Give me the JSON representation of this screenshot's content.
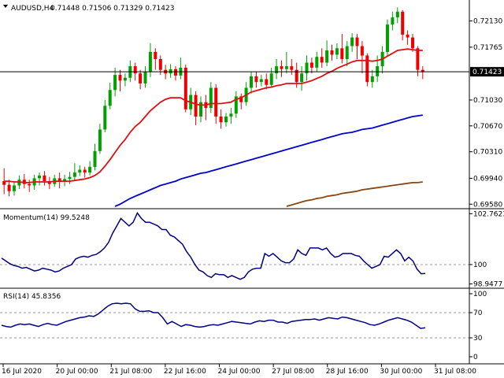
{
  "chart_data": [
    {
      "type": "candlestick",
      "title": "AUDUSD,H4",
      "ohlc_label": "0.71448 0.71506 0.71329 0.71423",
      "last_price_label": "0.71423",
      "last_price": 0.71423,
      "ylim": [
        0.6955,
        0.724
      ],
      "yticks": [
        "0.72130",
        "0.71765",
        "0.71030",
        "0.70670",
        "0.70310",
        "0.69940",
        "0.69580"
      ],
      "xticks": [
        "16 Jul 2020",
        "20 Jul 00:00",
        "21 Jul 08:00",
        "22 Jul 16:00",
        "24 Jul 00:00",
        "27 Jul 08:00",
        "28 Jul 16:00",
        "30 Jul 00:00",
        "31 Jul 08:00"
      ],
      "colors": {
        "up": "#00a000",
        "down": "#ee0000",
        "ma_fast": "#dd1111",
        "ma_mid": "#0000cc",
        "ma_slow": "#8b4513"
      },
      "candles": [
        [
          0.699,
          0.6985,
          0.7008,
          0.6972
        ],
        [
          0.6985,
          0.6976,
          0.6992,
          0.6969
        ],
        [
          0.6976,
          0.6984,
          0.699,
          0.697
        ],
        [
          0.6984,
          0.6992,
          0.6998,
          0.6979
        ],
        [
          0.6992,
          0.6986,
          0.7,
          0.698
        ],
        [
          0.6986,
          0.6984,
          0.6992,
          0.6975
        ],
        [
          0.6984,
          0.6994,
          0.6999,
          0.6978
        ],
        [
          0.6994,
          0.6998,
          0.7002,
          0.6984
        ],
        [
          0.6998,
          0.699,
          0.7004,
          0.6984
        ],
        [
          0.699,
          0.6986,
          0.6996,
          0.6979
        ],
        [
          0.6986,
          0.6994,
          0.6999,
          0.6982
        ],
        [
          0.6994,
          0.699,
          0.7002,
          0.698
        ],
        [
          0.699,
          0.6993,
          0.6999,
          0.6983
        ],
        [
          0.6993,
          0.6996,
          0.7003,
          0.6986
        ],
        [
          0.6996,
          0.7002,
          0.7015,
          0.699
        ],
        [
          0.7002,
          0.7006,
          0.7012,
          0.6997
        ],
        [
          0.7006,
          0.7002,
          0.701,
          0.6995
        ],
        [
          0.7002,
          0.701,
          0.7018,
          0.6998
        ],
        [
          0.701,
          0.7032,
          0.7042,
          0.7005
        ],
        [
          0.7032,
          0.7062,
          0.707,
          0.7028
        ],
        [
          0.7062,
          0.7095,
          0.7103,
          0.7058
        ],
        [
          0.7095,
          0.7117,
          0.7127,
          0.709
        ],
        [
          0.7117,
          0.7138,
          0.7148,
          0.7108
        ],
        [
          0.7138,
          0.713,
          0.7145,
          0.7115
        ],
        [
          0.713,
          0.7134,
          0.714,
          0.7122
        ],
        [
          0.7134,
          0.715,
          0.7158,
          0.7128
        ],
        [
          0.715,
          0.714,
          0.7155,
          0.713
        ],
        [
          0.714,
          0.7126,
          0.7145,
          0.7118
        ],
        [
          0.7126,
          0.7142,
          0.715,
          0.712
        ],
        [
          0.7142,
          0.717,
          0.7182,
          0.7135
        ],
        [
          0.717,
          0.716,
          0.7175,
          0.7145
        ],
        [
          0.716,
          0.7145,
          0.7165,
          0.7138
        ],
        [
          0.7145,
          0.714,
          0.7152,
          0.7132
        ],
        [
          0.714,
          0.7146,
          0.7153,
          0.7134
        ],
        [
          0.7146,
          0.7137,
          0.715,
          0.713
        ],
        [
          0.7137,
          0.7148,
          0.7162,
          0.7132
        ],
        [
          0.7148,
          0.709,
          0.7152,
          0.7086
        ],
        [
          0.709,
          0.711,
          0.712,
          0.7082
        ],
        [
          0.711,
          0.708,
          0.7115,
          0.7068
        ],
        [
          0.708,
          0.71,
          0.7108,
          0.7072
        ],
        [
          0.71,
          0.7092,
          0.711,
          0.7075
        ],
        [
          0.7092,
          0.712,
          0.7128,
          0.7085
        ],
        [
          0.712,
          0.708,
          0.7125,
          0.707
        ],
        [
          0.708,
          0.7072,
          0.709,
          0.7063
        ],
        [
          0.7072,
          0.708,
          0.7085,
          0.7066
        ],
        [
          0.708,
          0.7084,
          0.7092,
          0.707
        ],
        [
          0.7084,
          0.7108,
          0.7115,
          0.7078
        ],
        [
          0.7108,
          0.71,
          0.7112,
          0.709
        ],
        [
          0.71,
          0.712,
          0.7128,
          0.7095
        ],
        [
          0.712,
          0.7136,
          0.7142,
          0.7112
        ],
        [
          0.7136,
          0.7128,
          0.7142,
          0.712
        ],
        [
          0.7128,
          0.7132,
          0.7138,
          0.7122
        ],
        [
          0.7132,
          0.7124,
          0.714,
          0.7118
        ],
        [
          0.7124,
          0.714,
          0.7148,
          0.712
        ],
        [
          0.714,
          0.715,
          0.716,
          0.7132
        ],
        [
          0.715,
          0.7146,
          0.7158,
          0.7135
        ],
        [
          0.7146,
          0.715,
          0.717,
          0.714
        ],
        [
          0.715,
          0.7145,
          0.716,
          0.7138
        ],
        [
          0.7145,
          0.7128,
          0.7155,
          0.712
        ],
        [
          0.7128,
          0.714,
          0.715,
          0.7116
        ],
        [
          0.714,
          0.7155,
          0.7165,
          0.713
        ],
        [
          0.7155,
          0.7148,
          0.7162,
          0.714
        ],
        [
          0.7148,
          0.7163,
          0.717,
          0.7142
        ],
        [
          0.7163,
          0.7155,
          0.7175,
          0.7148
        ],
        [
          0.7155,
          0.7172,
          0.7186,
          0.715
        ],
        [
          0.7172,
          0.7166,
          0.718,
          0.7158
        ],
        [
          0.7166,
          0.7175,
          0.7182,
          0.716
        ],
        [
          0.7175,
          0.716,
          0.7195,
          0.7154
        ],
        [
          0.716,
          0.7178,
          0.7185,
          0.715
        ],
        [
          0.7178,
          0.719,
          0.7196,
          0.717
        ],
        [
          0.719,
          0.7178,
          0.7195,
          0.716
        ],
        [
          0.7178,
          0.7165,
          0.7185,
          0.714
        ],
        [
          0.7165,
          0.7128,
          0.7168,
          0.7122
        ],
        [
          0.7128,
          0.7136,
          0.7145,
          0.712
        ],
        [
          0.7136,
          0.715,
          0.7165,
          0.7128
        ],
        [
          0.715,
          0.717,
          0.7178,
          0.714
        ],
        [
          0.717,
          0.7208,
          0.7215,
          0.7164
        ],
        [
          0.7208,
          0.7218,
          0.7226,
          0.72
        ],
        [
          0.7218,
          0.7226,
          0.7232,
          0.721
        ],
        [
          0.7226,
          0.7194,
          0.7228,
          0.7186
        ],
        [
          0.7194,
          0.719,
          0.72,
          0.718
        ],
        [
          0.719,
          0.7175,
          0.7195,
          0.717
        ],
        [
          0.7175,
          0.7145,
          0.7178,
          0.7136
        ],
        [
          0.7145,
          0.7142,
          0.715,
          0.7132
        ]
      ],
      "ma_fast": [
        0.699,
        0.699,
        0.6989,
        0.6989,
        0.6988,
        0.6988,
        0.6989,
        0.6989,
        0.6989,
        0.6989,
        0.699,
        0.699,
        0.699,
        0.699,
        0.6991,
        0.6992,
        0.6993,
        0.6995,
        0.6998,
        0.7003,
        0.7011,
        0.702,
        0.703,
        0.704,
        0.7048,
        0.7058,
        0.7066,
        0.7072,
        0.708,
        0.7088,
        0.7094,
        0.71,
        0.7104,
        0.7106,
        0.7106,
        0.7106,
        0.7102,
        0.71,
        0.7097,
        0.7096,
        0.7096,
        0.7098,
        0.7098,
        0.7098,
        0.7099,
        0.71,
        0.7104,
        0.7106,
        0.711,
        0.7114,
        0.7116,
        0.7118,
        0.712,
        0.7121,
        0.7123,
        0.7124,
        0.7126,
        0.7126,
        0.7126,
        0.7126,
        0.7128,
        0.713,
        0.7133,
        0.7136,
        0.714,
        0.7143,
        0.7147,
        0.715,
        0.7153,
        0.7156,
        0.7158,
        0.7158,
        0.7158,
        0.7157,
        0.7158,
        0.716,
        0.7164,
        0.7168,
        0.7172,
        0.7173,
        0.7174,
        0.7173,
        0.7172,
        0.7172
      ],
      "ma_mid": [
        null,
        null,
        null,
        null,
        null,
        null,
        null,
        null,
        null,
        null,
        null,
        null,
        null,
        null,
        null,
        null,
        null,
        null,
        null,
        null,
        null,
        null,
        0.6955,
        0.6958,
        0.6962,
        0.6966,
        0.6969,
        0.6972,
        0.6975,
        0.6978,
        0.6981,
        0.6984,
        0.6986,
        0.6988,
        0.699,
        0.6993,
        0.6995,
        0.6997,
        0.6999,
        0.7001,
        0.7002,
        0.7004,
        0.7006,
        0.7008,
        0.701,
        0.7012,
        0.7014,
        0.7016,
        0.7018,
        0.702,
        0.7022,
        0.7024,
        0.7026,
        0.7028,
        0.703,
        0.7032,
        0.7034,
        0.7036,
        0.7038,
        0.704,
        0.7042,
        0.7044,
        0.7046,
        0.7048,
        0.705,
        0.7052,
        0.7054,
        0.7056,
        0.7057,
        0.7058,
        0.706,
        0.7062,
        0.7063,
        0.7064,
        0.7066,
        0.7068,
        0.707,
        0.7072,
        0.7074,
        0.7076,
        0.7078,
        0.708,
        0.7081,
        0.7082
      ],
      "ma_slow": [
        null,
        null,
        null,
        null,
        null,
        null,
        null,
        null,
        null,
        null,
        null,
        null,
        null,
        null,
        null,
        null,
        null,
        null,
        null,
        null,
        null,
        null,
        null,
        null,
        null,
        null,
        null,
        null,
        null,
        null,
        null,
        null,
        null,
        null,
        null,
        null,
        null,
        null,
        null,
        null,
        null,
        null,
        null,
        null,
        null,
        null,
        null,
        null,
        null,
        null,
        null,
        null,
        null,
        null,
        null,
        null,
        0.6955,
        0.6957,
        0.6959,
        0.6961,
        0.6963,
        0.6964,
        0.6966,
        0.6967,
        0.6969,
        0.697,
        0.6971,
        0.6973,
        0.6974,
        0.6975,
        0.6976,
        0.6978,
        0.6979,
        0.698,
        0.6981,
        0.6982,
        0.6983,
        0.6984,
        0.6985,
        0.6986,
        0.6987,
        0.6988,
        0.6988,
        0.6989
      ]
    },
    {
      "type": "line",
      "title": "Momentum(14) 99.5248",
      "ylim": [
        98.8,
        102.95
      ],
      "yticks": [
        "102.7623",
        "100",
        "98.9477"
      ],
      "reference_level": 100,
      "values": [
        100.35,
        100.2,
        100.05,
        99.95,
        99.9,
        99.8,
        99.85,
        99.75,
        99.65,
        99.7,
        99.8,
        99.75,
        99.7,
        99.6,
        99.65,
        99.8,
        99.9,
        100.0,
        100.3,
        100.4,
        100.45,
        100.4,
        100.5,
        100.55,
        100.7,
        100.9,
        101.2,
        101.7,
        102.1,
        102.5,
        102.3,
        102.1,
        102.3,
        102.8,
        102.5,
        102.3,
        102.3,
        102.2,
        102.1,
        101.9,
        101.9,
        101.6,
        101.5,
        101.3,
        101.1,
        100.7,
        100.4,
        100.0,
        99.7,
        99.6,
        99.4,
        99.3,
        99.5,
        99.45,
        99.45,
        99.3,
        99.4,
        99.3,
        99.2,
        99.3,
        99.6,
        99.75,
        99.8,
        99.8,
        100.6,
        100.45,
        100.6,
        100.4,
        100.2,
        100.1,
        100.1,
        100.3,
        100.8,
        100.6,
        100.5,
        100.9,
        100.9,
        100.9,
        100.8,
        100.9,
        100.6,
        100.4,
        100.45,
        100.6,
        100.6,
        100.6,
        100.5,
        100.45,
        100.2,
        100.0,
        99.8,
        99.9,
        100.0,
        100.45,
        100.4,
        100.6,
        100.8,
        100.6,
        100.2,
        100.4,
        100.2,
        99.75,
        99.5,
        99.52
      ]
    },
    {
      "type": "line",
      "title": "RSI(14) 45.8356",
      "ylim": [
        0,
        100
      ],
      "yticks": [
        "100",
        "70",
        "30",
        "0"
      ],
      "reference_levels": [
        70,
        30
      ],
      "values": [
        50,
        48,
        47,
        50,
        52,
        51,
        52,
        50,
        48,
        51,
        53,
        51,
        50,
        53,
        56,
        58,
        60,
        62,
        63,
        65,
        64,
        68,
        74,
        80,
        84,
        85,
        84,
        85,
        84,
        76,
        72,
        72,
        73,
        70,
        70,
        62,
        52,
        56,
        52,
        48,
        51,
        50,
        48,
        47,
        48,
        50,
        51,
        50,
        52,
        54,
        56,
        55,
        54,
        53,
        52,
        55,
        57,
        56,
        58,
        58,
        55,
        55,
        53,
        56,
        57,
        58,
        59,
        59,
        60,
        58,
        60,
        62,
        61,
        60,
        63,
        62,
        60,
        58,
        56,
        54,
        51,
        50,
        52,
        55,
        58,
        60,
        62,
        60,
        58,
        55,
        50,
        45,
        46
      ]
    }
  ]
}
